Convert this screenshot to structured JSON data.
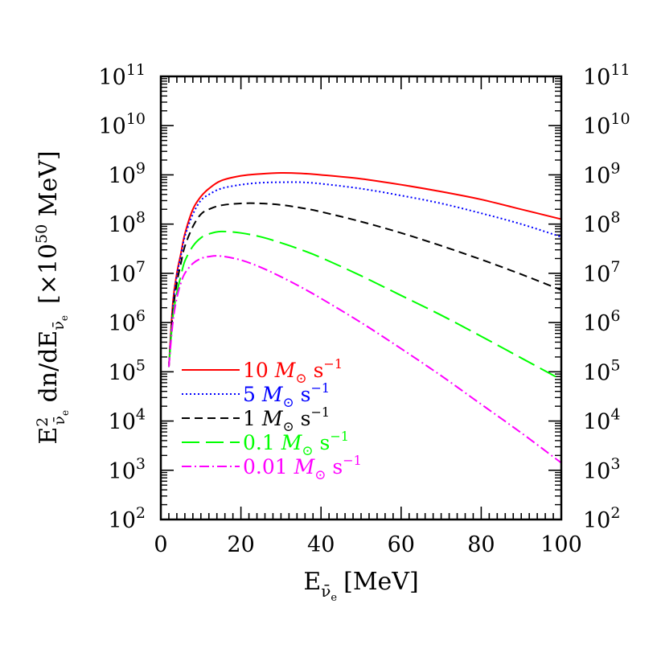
{
  "chart_data": {
    "type": "line",
    "xlabel": {
      "main": "E",
      "sub": "ν̄",
      "subsub": "e",
      "unit": "[MeV]"
    },
    "ylabel": {
      "main": "E",
      "sup": "2",
      "sub": "ν̄",
      "subsub": "e",
      "mid": " dn/dE",
      "unit_open": "[×10",
      "unit_exp": "50",
      "unit_close": " MeV]"
    },
    "xlim": [
      0,
      100
    ],
    "ylim_log10": [
      2,
      11
    ],
    "log_y": true,
    "x_ticks": [
      "0",
      "20",
      "40",
      "60",
      "80",
      "100"
    ],
    "y_ticks_base": "10",
    "y_ticks_exp": [
      "2",
      "3",
      "4",
      "5",
      "6",
      "7",
      "8",
      "9",
      "10",
      "11"
    ],
    "legend_position": "lower-left",
    "series": [
      {
        "name": "10",
        "unit": "M",
        "sun": "⊙",
        "rate": " s",
        "rate_exp": "−1",
        "color": "#ff0000",
        "dash": "none",
        "x": [
          2,
          3,
          4,
          5,
          6,
          8,
          10,
          12,
          15,
          20,
          25,
          30,
          35,
          40,
          50,
          60,
          70,
          80,
          90,
          100
        ],
        "log10_y": [
          5.1,
          6.4,
          7.0,
          7.4,
          7.8,
          8.3,
          8.56,
          8.72,
          8.88,
          8.98,
          9.02,
          9.04,
          9.03,
          9.0,
          8.92,
          8.8,
          8.66,
          8.5,
          8.3,
          8.1
        ]
      },
      {
        "name": "5",
        "unit": "M",
        "sun": "⊙",
        "rate": " s",
        "rate_exp": "−1",
        "color": "#0000ff",
        "dash": "2,3",
        "x": [
          2,
          3,
          4,
          5,
          6,
          8,
          10,
          12,
          15,
          20,
          25,
          30,
          35,
          40,
          50,
          60,
          70,
          80,
          90,
          100
        ],
        "log10_y": [
          5.1,
          6.3,
          6.95,
          7.35,
          7.75,
          8.2,
          8.48,
          8.6,
          8.72,
          8.8,
          8.84,
          8.85,
          8.85,
          8.82,
          8.72,
          8.58,
          8.42,
          8.22,
          8.0,
          7.74
        ]
      },
      {
        "name": "1",
        "unit": "M",
        "sun": "⊙",
        "rate": " s",
        "rate_exp": "−1",
        "color": "#000000",
        "dash": "10,6",
        "x": [
          2,
          3,
          4,
          5,
          6,
          8,
          10,
          12,
          15,
          20,
          25,
          30,
          35,
          40,
          50,
          60,
          70,
          80,
          90,
          100
        ],
        "log10_y": [
          5.1,
          6.2,
          6.8,
          7.2,
          7.55,
          7.95,
          8.2,
          8.3,
          8.38,
          8.42,
          8.42,
          8.39,
          8.33,
          8.25,
          8.05,
          7.82,
          7.56,
          7.28,
          6.98,
          6.66
        ]
      },
      {
        "name": "0.1",
        "unit": "M",
        "sun": "⊙",
        "rate": " s",
        "rate_exp": "−1",
        "color": "#00ff00",
        "dash": "22,8",
        "x": [
          2,
          3,
          4,
          5,
          6,
          8,
          10,
          12,
          15,
          20,
          25,
          30,
          35,
          40,
          50,
          60,
          70,
          80,
          90,
          100
        ],
        "log10_y": [
          5.1,
          6.1,
          6.6,
          6.95,
          7.25,
          7.55,
          7.72,
          7.8,
          7.85,
          7.82,
          7.74,
          7.62,
          7.48,
          7.32,
          6.95,
          6.55,
          6.15,
          5.72,
          5.28,
          4.84
        ]
      },
      {
        "name": "0.01",
        "unit": "M",
        "sun": "⊙",
        "rate": " s",
        "rate_exp": "−1",
        "color": "#ff00ff",
        "dash": "12,4,2,4",
        "x": [
          2,
          3,
          4,
          5,
          6,
          8,
          10,
          12,
          15,
          20,
          25,
          30,
          35,
          40,
          50,
          60,
          70,
          80,
          90,
          100
        ],
        "log10_y": [
          5.1,
          6.0,
          6.5,
          6.8,
          7.0,
          7.2,
          7.3,
          7.34,
          7.35,
          7.27,
          7.12,
          6.93,
          6.72,
          6.49,
          6.0,
          5.47,
          4.92,
          4.34,
          3.76,
          3.15
        ]
      }
    ]
  }
}
